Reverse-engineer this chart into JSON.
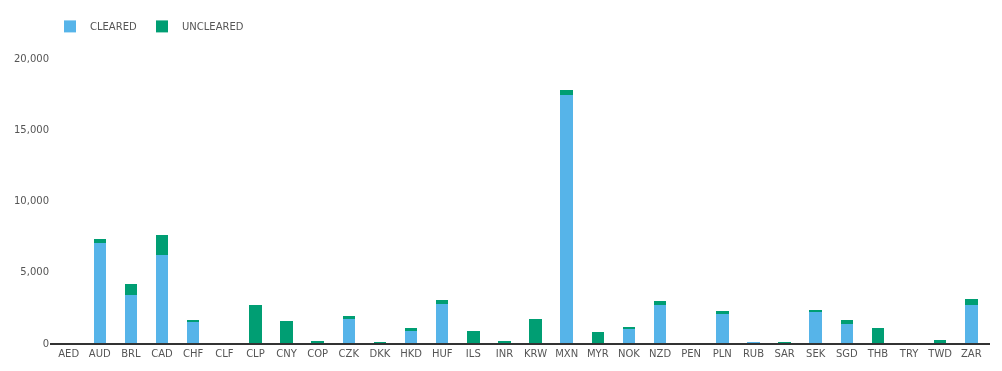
{
  "chart_data": {
    "type": "bar",
    "stacked": true,
    "legend": "top left",
    "categories": [
      "AED",
      "AUD",
      "BRL",
      "CAD",
      "CHF",
      "CLF",
      "CLP",
      "CNY",
      "COP",
      "CZK",
      "DKK",
      "HKD",
      "HUF",
      "ILS",
      "INR",
      "KRW",
      "MXN",
      "MYR",
      "NOK",
      "NZD",
      "PEN",
      "PLN",
      "RUB",
      "SAR",
      "SEK",
      "SGD",
      "THB",
      "TRY",
      "TWD",
      "ZAR"
    ],
    "series": [
      {
        "name": "CLEARED",
        "color": "#56b4e9",
        "values": [
          0,
          7000,
          3390,
          6190,
          1480,
          0,
          0,
          0,
          0,
          1690,
          0,
          870,
          2760,
          0,
          0,
          0,
          17370,
          0,
          1020,
          2640,
          0,
          2030,
          30,
          0,
          2200,
          1360,
          0,
          0,
          0,
          2640
        ]
      },
      {
        "name": "UNCLEARED",
        "color": "#009e73",
        "values": [
          0,
          300,
          770,
          1380,
          120,
          0,
          2640,
          1540,
          80,
          200,
          50,
          170,
          230,
          850,
          120,
          1650,
          370,
          790,
          80,
          290,
          0,
          210,
          0,
          60,
          120,
          230,
          1040,
          0,
          240,
          470
        ]
      }
    ],
    "ylim": [
      0,
      20000
    ],
    "yticks": [
      {
        "value": 0,
        "label": "0"
      },
      {
        "value": 5000,
        "label": "5,000"
      },
      {
        "value": 10000,
        "label": "10,000"
      },
      {
        "value": 15000,
        "label": "15,000"
      },
      {
        "value": 20000,
        "label": "20,000"
      }
    ]
  }
}
